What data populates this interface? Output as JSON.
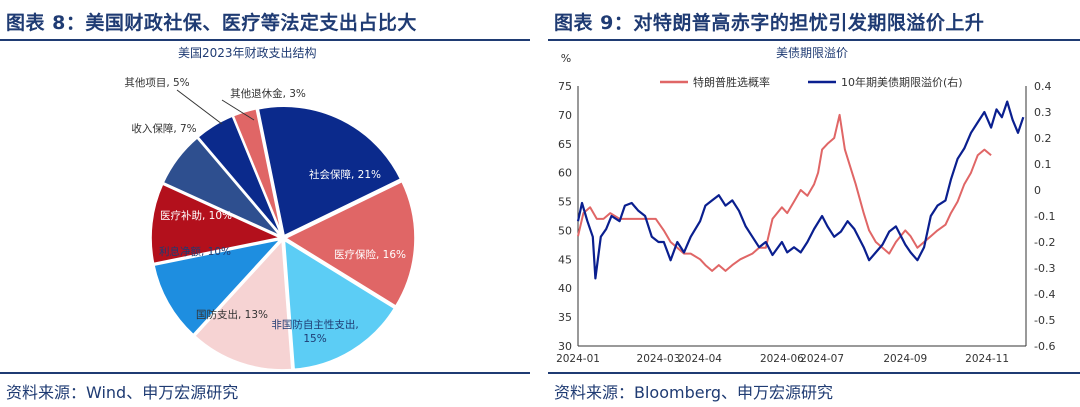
{
  "colors": {
    "accent": "#1f3b73",
    "line_red": "#e06666",
    "line_navy": "#0a1f8f"
  },
  "left": {
    "figure_title": "图表 8：美国财政社保、医疗等法定支出占比大",
    "chart_title": "美国2023年财政支出结构",
    "source": "资料来源：Wind、申万宏源研究"
  },
  "right": {
    "figure_title": "图表 9：对特朗普高赤字的担忧引发期限溢价上升",
    "chart_title": "美债期限溢价",
    "source": "资料来源：Bloomberg、申万宏源研究",
    "left_unit": "%"
  },
  "chart_data": [
    {
      "type": "pie",
      "title": "美国2023年财政支出结构",
      "slices": [
        {
          "label": "社会保障, 21%",
          "value": 21,
          "color": "#0b2a8c"
        },
        {
          "label": "医疗保险, 16%",
          "value": 16,
          "color": "#e06666"
        },
        {
          "label": "非国防自主性支出, 15%",
          "value": 15,
          "color": "#5ccdf5"
        },
        {
          "label": "国防支出, 13%",
          "value": 13,
          "color": "#f6d3d3"
        },
        {
          "label": "利息净额, 10%",
          "value": 10,
          "color": "#1e8ee0"
        },
        {
          "label": "医疗补助, 10%",
          "value": 10,
          "color": "#b3101c"
        },
        {
          "label": "收入保障, 7%",
          "value": 7,
          "color": "#2e4f8f"
        },
        {
          "label": "其他项目, 5%",
          "value": 5,
          "color": "#0b2a8c"
        },
        {
          "label": "其他退休金, 3%",
          "value": 3,
          "color": "#e06666"
        }
      ]
    },
    {
      "type": "line",
      "title": "美债期限溢价",
      "x_ticks": [
        "2024-01",
        "2024-03",
        "2024-04",
        "2024-06",
        "2024-07",
        "2024-09",
        "2024-11"
      ],
      "x_range": [
        "2024-01-01",
        "2024-11-30"
      ],
      "y_left": {
        "unit": "%",
        "ylim": [
          30,
          75
        ],
        "ticks": [
          30,
          35,
          40,
          45,
          50,
          55,
          60,
          65,
          70,
          75
        ]
      },
      "y_right": {
        "ylim": [
          -0.6,
          0.4
        ],
        "ticks": [
          -0.6,
          -0.5,
          -0.4,
          -0.3,
          -0.2,
          -0.1,
          0,
          0.1,
          0.2,
          0.3,
          0.4
        ]
      },
      "legend_placement": "top",
      "series": [
        {
          "name": "特朗普胜选概率",
          "axis": "left",
          "color": "#e06666",
          "points": [
            [
              "2024-01-01",
              49
            ],
            [
              "2024-01-05",
              53
            ],
            [
              "2024-01-10",
              54
            ],
            [
              "2024-01-15",
              52
            ],
            [
              "2024-01-20",
              52
            ],
            [
              "2024-01-25",
              53
            ],
            [
              "2024-02-01",
              52
            ],
            [
              "2024-02-10",
              52
            ],
            [
              "2024-02-20",
              52
            ],
            [
              "2024-02-28",
              52
            ],
            [
              "2024-03-05",
              50
            ],
            [
              "2024-03-10",
              48
            ],
            [
              "2024-03-15",
              47
            ],
            [
              "2024-03-20",
              46
            ],
            [
              "2024-03-25",
              46
            ],
            [
              "2024-04-01",
              45
            ],
            [
              "2024-04-05",
              44
            ],
            [
              "2024-04-10",
              43
            ],
            [
              "2024-04-15",
              44
            ],
            [
              "2024-04-20",
              43
            ],
            [
              "2024-04-25",
              44
            ],
            [
              "2024-05-01",
              45
            ],
            [
              "2024-05-10",
              46
            ],
            [
              "2024-05-15",
              47
            ],
            [
              "2024-05-20",
              47
            ],
            [
              "2024-05-25",
              52
            ],
            [
              "2024-06-01",
              54
            ],
            [
              "2024-06-05",
              53
            ],
            [
              "2024-06-10",
              55
            ],
            [
              "2024-06-15",
              57
            ],
            [
              "2024-06-20",
              56
            ],
            [
              "2024-06-25",
              58
            ],
            [
              "2024-06-28",
              60
            ],
            [
              "2024-07-01",
              64
            ],
            [
              "2024-07-05",
              65
            ],
            [
              "2024-07-10",
              66
            ],
            [
              "2024-07-14",
              70
            ],
            [
              "2024-07-18",
              64
            ],
            [
              "2024-07-22",
              61
            ],
            [
              "2024-07-26",
              58
            ],
            [
              "2024-08-01",
              53
            ],
            [
              "2024-08-05",
              50
            ],
            [
              "2024-08-10",
              48
            ],
            [
              "2024-08-15",
              47
            ],
            [
              "2024-08-20",
              46
            ],
            [
              "2024-08-25",
              48
            ],
            [
              "2024-09-01",
              50
            ],
            [
              "2024-09-05",
              49
            ],
            [
              "2024-09-10",
              47
            ],
            [
              "2024-09-15",
              48
            ],
            [
              "2024-09-20",
              49
            ],
            [
              "2024-09-25",
              50
            ],
            [
              "2024-10-01",
              51
            ],
            [
              "2024-10-05",
              53
            ],
            [
              "2024-10-10",
              55
            ],
            [
              "2024-10-15",
              58
            ],
            [
              "2024-10-20",
              60
            ],
            [
              "2024-10-25",
              63
            ],
            [
              "2024-10-30",
              64
            ],
            [
              "2024-11-04",
              63
            ]
          ]
        },
        {
          "name": "10年期美债期限溢价(右)",
          "axis": "right",
          "color": "#0a1f8f",
          "points": [
            [
              "2024-01-01",
              -0.12
            ],
            [
              "2024-01-04",
              -0.05
            ],
            [
              "2024-01-08",
              -0.12
            ],
            [
              "2024-01-12",
              -0.18
            ],
            [
              "2024-01-14",
              -0.34
            ],
            [
              "2024-01-18",
              -0.18
            ],
            [
              "2024-01-22",
              -0.15
            ],
            [
              "2024-01-26",
              -0.1
            ],
            [
              "2024-02-01",
              -0.12
            ],
            [
              "2024-02-05",
              -0.06
            ],
            [
              "2024-02-10",
              -0.05
            ],
            [
              "2024-02-15",
              -0.08
            ],
            [
              "2024-02-20",
              -0.1
            ],
            [
              "2024-02-25",
              -0.18
            ],
            [
              "2024-03-01",
              -0.2
            ],
            [
              "2024-03-05",
              -0.2
            ],
            [
              "2024-03-10",
              -0.27
            ],
            [
              "2024-03-15",
              -0.2
            ],
            [
              "2024-03-20",
              -0.24
            ],
            [
              "2024-03-25",
              -0.18
            ],
            [
              "2024-04-01",
              -0.12
            ],
            [
              "2024-04-05",
              -0.06
            ],
            [
              "2024-04-10",
              -0.04
            ],
            [
              "2024-04-15",
              -0.02
            ],
            [
              "2024-04-20",
              -0.06
            ],
            [
              "2024-04-25",
              -0.04
            ],
            [
              "2024-04-30",
              -0.08
            ],
            [
              "2024-05-05",
              -0.14
            ],
            [
              "2024-05-10",
              -0.18
            ],
            [
              "2024-05-15",
              -0.22
            ],
            [
              "2024-05-20",
              -0.2
            ],
            [
              "2024-05-25",
              -0.25
            ],
            [
              "2024-06-01",
              -0.2
            ],
            [
              "2024-06-05",
              -0.24
            ],
            [
              "2024-06-10",
              -0.22
            ],
            [
              "2024-06-15",
              -0.24
            ],
            [
              "2024-06-20",
              -0.2
            ],
            [
              "2024-06-25",
              -0.15
            ],
            [
              "2024-07-01",
              -0.1
            ],
            [
              "2024-07-05",
              -0.14
            ],
            [
              "2024-07-10",
              -0.18
            ],
            [
              "2024-07-15",
              -0.16
            ],
            [
              "2024-07-20",
              -0.12
            ],
            [
              "2024-07-25",
              -0.15
            ],
            [
              "2024-08-01",
              -0.22
            ],
            [
              "2024-08-05",
              -0.27
            ],
            [
              "2024-08-10",
              -0.24
            ],
            [
              "2024-08-15",
              -0.21
            ],
            [
              "2024-08-20",
              -0.16
            ],
            [
              "2024-08-25",
              -0.14
            ],
            [
              "2024-09-01",
              -0.21
            ],
            [
              "2024-09-05",
              -0.24
            ],
            [
              "2024-09-10",
              -0.27
            ],
            [
              "2024-09-15",
              -0.22
            ],
            [
              "2024-09-20",
              -0.1
            ],
            [
              "2024-09-25",
              -0.06
            ],
            [
              "2024-10-01",
              -0.04
            ],
            [
              "2024-10-05",
              0.04
            ],
            [
              "2024-10-10",
              0.12
            ],
            [
              "2024-10-15",
              0.16
            ],
            [
              "2024-10-20",
              0.22
            ],
            [
              "2024-10-25",
              0.26
            ],
            [
              "2024-10-30",
              0.3
            ],
            [
              "2024-11-04",
              0.24
            ],
            [
              "2024-11-08",
              0.31
            ],
            [
              "2024-11-12",
              0.28
            ],
            [
              "2024-11-16",
              0.34
            ],
            [
              "2024-11-20",
              0.27
            ],
            [
              "2024-11-24",
              0.22
            ],
            [
              "2024-11-28",
              0.28
            ]
          ]
        }
      ]
    }
  ]
}
